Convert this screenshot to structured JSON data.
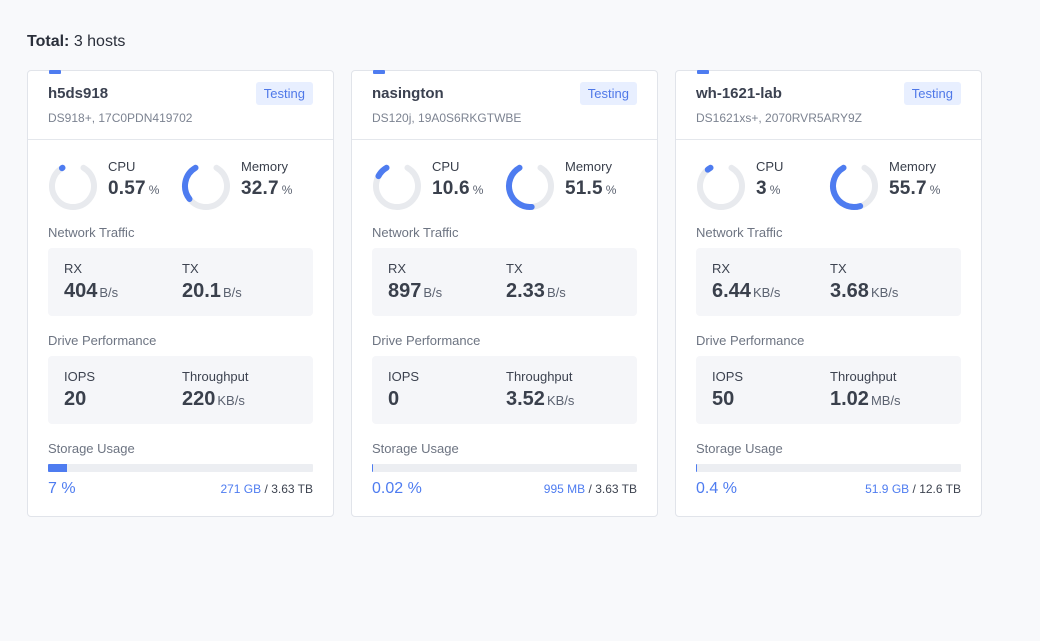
{
  "summary": {
    "label": "Total:",
    "value": "3 hosts"
  },
  "labels": {
    "cpu": "CPU",
    "memory": "Memory",
    "network": "Network Traffic",
    "rx": "RX",
    "tx": "TX",
    "drive": "Drive Performance",
    "iops": "IOPS",
    "throughput": "Throughput",
    "storage": "Storage Usage",
    "percent_unit": "%",
    "separator": "/"
  },
  "colors": {
    "accent": "#4e7cf0",
    "track": "#e8eaee"
  },
  "hosts": [
    {
      "name": "h5ds918",
      "model": "DS918+, 17C0PDN419702",
      "badge": "Testing",
      "cpu": {
        "text": "0.57",
        "value": 0.57
      },
      "memory": {
        "text": "32.7",
        "value": 32.7
      },
      "rx": {
        "value": "404",
        "unit": "B/s"
      },
      "tx": {
        "value": "20.1",
        "unit": "B/s"
      },
      "iops": {
        "value": "20",
        "unit": ""
      },
      "throughput": {
        "value": "220",
        "unit": "KB/s"
      },
      "storage": {
        "percent_text": "7 %",
        "percent": 7,
        "used": "271 GB",
        "total": "3.63 TB"
      }
    },
    {
      "name": "nasington",
      "model": "DS120j, 19A0S6RKGTWBE",
      "badge": "Testing",
      "cpu": {
        "text": "10.6",
        "value": 10.6
      },
      "memory": {
        "text": "51.5",
        "value": 51.5
      },
      "rx": {
        "value": "897",
        "unit": "B/s"
      },
      "tx": {
        "value": "2.33",
        "unit": "B/s"
      },
      "iops": {
        "value": "0",
        "unit": ""
      },
      "throughput": {
        "value": "3.52",
        "unit": "KB/s"
      },
      "storage": {
        "percent_text": "0.02 %",
        "percent": 0.02,
        "used": "995 MB",
        "total": "3.63 TB"
      }
    },
    {
      "name": "wh-1621-lab",
      "model": "DS1621xs+, 2070RVR5ARY9Z",
      "badge": "Testing",
      "cpu": {
        "text": "3",
        "value": 3
      },
      "memory": {
        "text": "55.7",
        "value": 55.7
      },
      "rx": {
        "value": "6.44",
        "unit": "KB/s"
      },
      "tx": {
        "value": "3.68",
        "unit": "KB/s"
      },
      "iops": {
        "value": "50",
        "unit": ""
      },
      "throughput": {
        "value": "1.02",
        "unit": "MB/s"
      },
      "storage": {
        "percent_text": "0.4 %",
        "percent": 0.4,
        "used": "51.9 GB",
        "total": "12.6 TB"
      }
    }
  ]
}
